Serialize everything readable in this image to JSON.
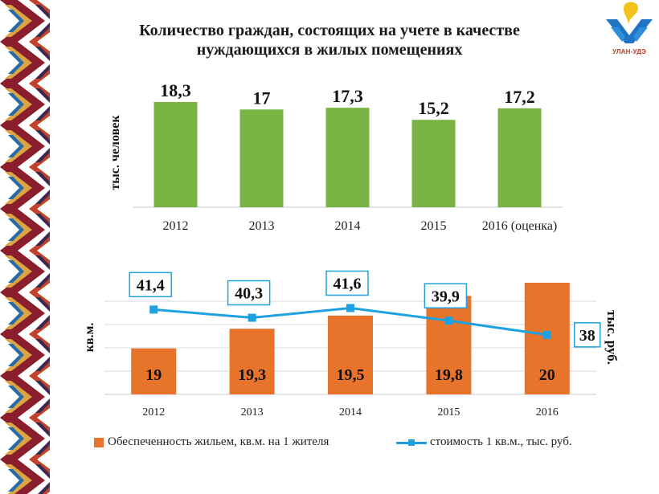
{
  "title_line1": "Количество граждан, состоящих на учете в качестве",
  "title_line2": "нуждающихся в жилых помещениях",
  "logo": {
    "text": "УЛАН-УДЭ"
  },
  "colors": {
    "bar_green": "#78b443",
    "bar_orange": "#e8742b",
    "line_blue": "#1da1e0",
    "label_box_border": "#1da1e0",
    "grid": "#d9d9d9"
  },
  "chart_data": [
    {
      "type": "bar",
      "categories": [
        "2012",
        "2013",
        "2014",
        "2015",
        "2016 (оценка)"
      ],
      "values": [
        18.3,
        17,
        17.3,
        15.2,
        17.2
      ],
      "value_labels": [
        "18,3",
        "17",
        "17,3",
        "15,2",
        "17,2"
      ],
      "ylabel": "тыс. человек",
      "ylim": [
        0,
        18.3
      ],
      "grid": false
    },
    {
      "type": "bar+line",
      "categories": [
        "2012",
        "2013",
        "2014",
        "2015",
        "2016"
      ],
      "series": [
        {
          "name": "Обеспеченность жильем, кв.м. на 1 жителя",
          "type": "bar",
          "axis": "left",
          "values": [
            19,
            19.3,
            19.5,
            19.8,
            20
          ],
          "value_labels": [
            "19",
            "19,3",
            "19,5",
            "19,8",
            "20"
          ]
        },
        {
          "name": "стоимость 1 кв.м., тыс. руб.",
          "type": "line",
          "axis": "right",
          "values": [
            41.4,
            40.3,
            41.6,
            39.9,
            38
          ],
          "value_labels": [
            "41,4",
            "40,3",
            "41,6",
            "39,9",
            "38"
          ]
        }
      ],
      "ylabel_left": "кв.м.",
      "ylabel_right": "тыс. руб.",
      "ylim_left": [
        18.3,
        20
      ],
      "ylim_right": [
        30,
        45
      ],
      "grid": true,
      "legend_position": "bottom"
    }
  ]
}
